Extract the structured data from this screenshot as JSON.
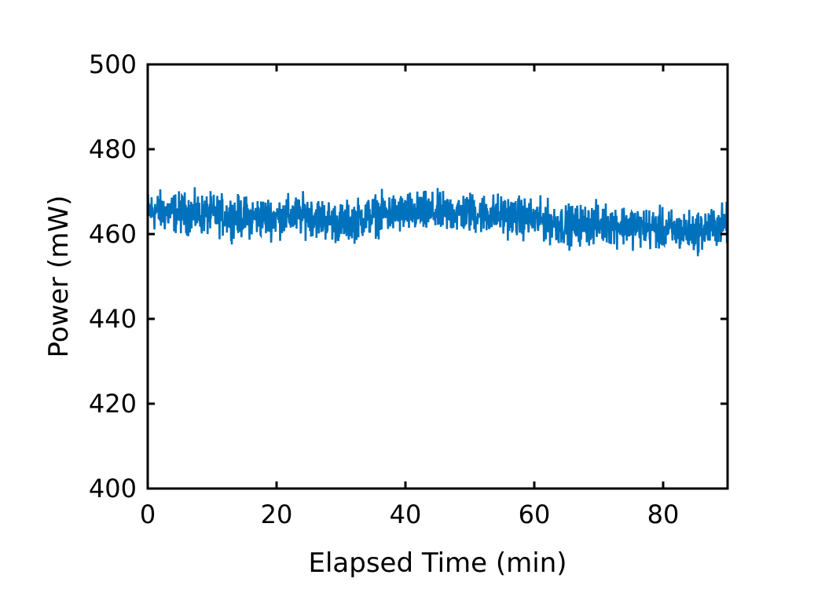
{
  "chart_data": {
    "type": "line",
    "title": "",
    "xlabel": "Elapsed Time (min)",
    "ylabel": "Power (mW)",
    "xlim": [
      0,
      90
    ],
    "ylim": [
      400,
      500
    ],
    "xticks": [
      0,
      20,
      40,
      60,
      80
    ],
    "yticks": [
      400,
      420,
      440,
      460,
      480,
      500
    ],
    "grid": false,
    "legend": "none",
    "series": [
      {
        "color": "#0072BD",
        "x": [
          0,
          5,
          10,
          15,
          20,
          25,
          30,
          35,
          40,
          45,
          50,
          55,
          60,
          65,
          70,
          75,
          80,
          85,
          90
        ],
        "y": [
          465.5,
          465,
          464.5,
          464,
          464,
          464.5,
          462.5,
          464.5,
          465,
          465,
          465,
          464.5,
          463.5,
          462,
          462.5,
          462,
          461,
          460.5,
          462.5
        ],
        "noise_band_mW": [
          -7,
          7
        ]
      }
    ]
  }
}
